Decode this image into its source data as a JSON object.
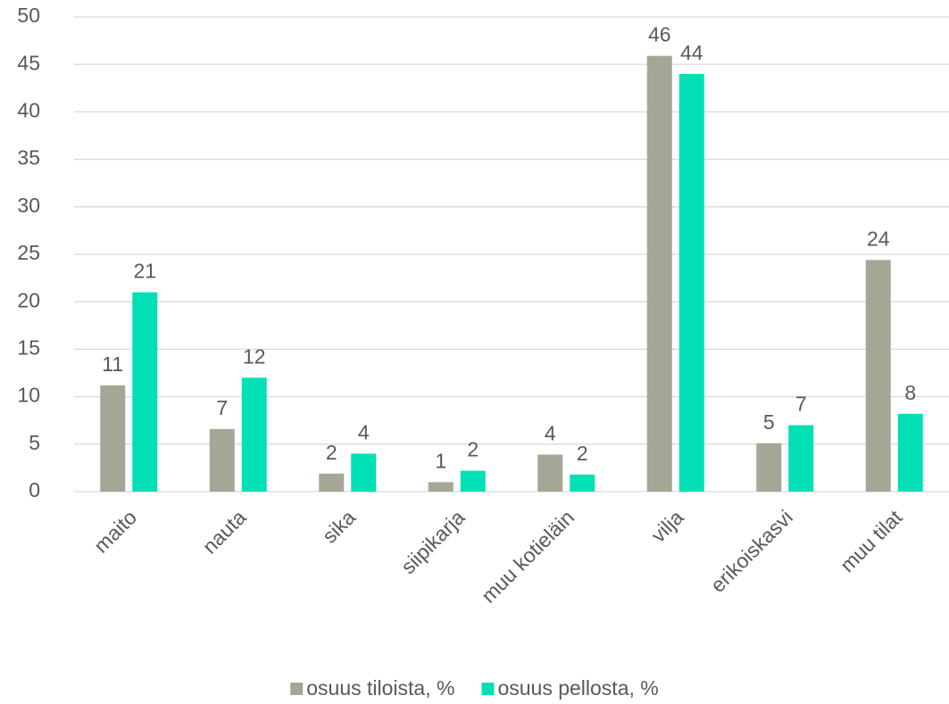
{
  "chart_data": {
    "type": "bar",
    "categories": [
      "maito",
      "nauta",
      "sika",
      "siipikarja",
      "muu kotieläin",
      "vilja",
      "erikoiskasvi",
      "muu tilat"
    ],
    "series": [
      {
        "name": "osuus tiloista, %",
        "color": "#a6a696",
        "values": [
          11.2,
          6.6,
          1.9,
          1.0,
          3.9,
          45.9,
          5.1,
          24.4
        ],
        "value_labels": [
          "11",
          "7",
          "2",
          "1",
          "4",
          "46",
          "5",
          "24"
        ]
      },
      {
        "name": "osuus pellosta, %",
        "color": "#00e0b4",
        "values": [
          21.0,
          12.0,
          4.0,
          2.2,
          1.8,
          44.0,
          7.0,
          8.2
        ],
        "value_labels": [
          "21",
          "12",
          "4",
          "2",
          "2",
          "44",
          "7",
          "8"
        ]
      }
    ],
    "ylim": [
      0,
      50
    ],
    "yticks": [
      0,
      5,
      10,
      15,
      20,
      25,
      30,
      35,
      40,
      45,
      50
    ],
    "grid": true,
    "legend": "bottom"
  }
}
